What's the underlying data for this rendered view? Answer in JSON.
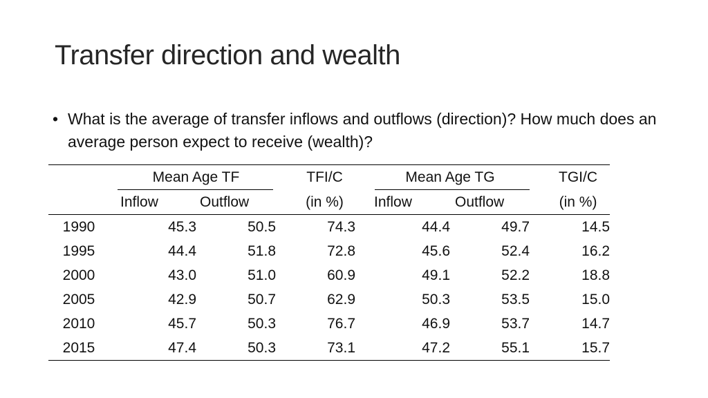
{
  "title": "Transfer direction and wealth",
  "bullet": {
    "marker": "•",
    "text": "What is the average of transfer inflows and outflows (direction)? How much does an average person expect to receive (wealth)?"
  },
  "table": {
    "group_headers": {
      "mean_age_tf": "Mean Age TF",
      "tfi_c": "TFI/C",
      "mean_age_tg": "Mean Age TG",
      "tgi_c": "TGI/C"
    },
    "sub_headers": {
      "tf_inflow": "Inflow",
      "tf_outflow": "Outflow",
      "tfi_unit": "(in %)",
      "tg_inflow": "Inflow",
      "tg_outflow": "Outflow",
      "tgi_unit": "(in %)"
    },
    "rows": [
      {
        "year": "1990",
        "tf_inflow": "45.3",
        "tf_outflow": "50.5",
        "tfi_c": "74.3",
        "tg_inflow": "44.4",
        "tg_outflow": "49.7",
        "tgi_c": "14.5"
      },
      {
        "year": "1995",
        "tf_inflow": "44.4",
        "tf_outflow": "51.8",
        "tfi_c": "72.8",
        "tg_inflow": "45.6",
        "tg_outflow": "52.4",
        "tgi_c": "16.2"
      },
      {
        "year": "2000",
        "tf_inflow": "43.0",
        "tf_outflow": "51.0",
        "tfi_c": "60.9",
        "tg_inflow": "49.1",
        "tg_outflow": "52.2",
        "tgi_c": "18.8"
      },
      {
        "year": "2005",
        "tf_inflow": "42.9",
        "tf_outflow": "50.7",
        "tfi_c": "62.9",
        "tg_inflow": "50.3",
        "tg_outflow": "53.5",
        "tgi_c": "15.0"
      },
      {
        "year": "2010",
        "tf_inflow": "45.7",
        "tf_outflow": "50.3",
        "tfi_c": "76.7",
        "tg_inflow": "46.9",
        "tg_outflow": "53.7",
        "tgi_c": "14.7"
      },
      {
        "year": "2015",
        "tf_inflow": "47.4",
        "tf_outflow": "50.3",
        "tfi_c": "73.1",
        "tg_inflow": "47.2",
        "tg_outflow": "55.1",
        "tgi_c": "15.7"
      }
    ]
  }
}
